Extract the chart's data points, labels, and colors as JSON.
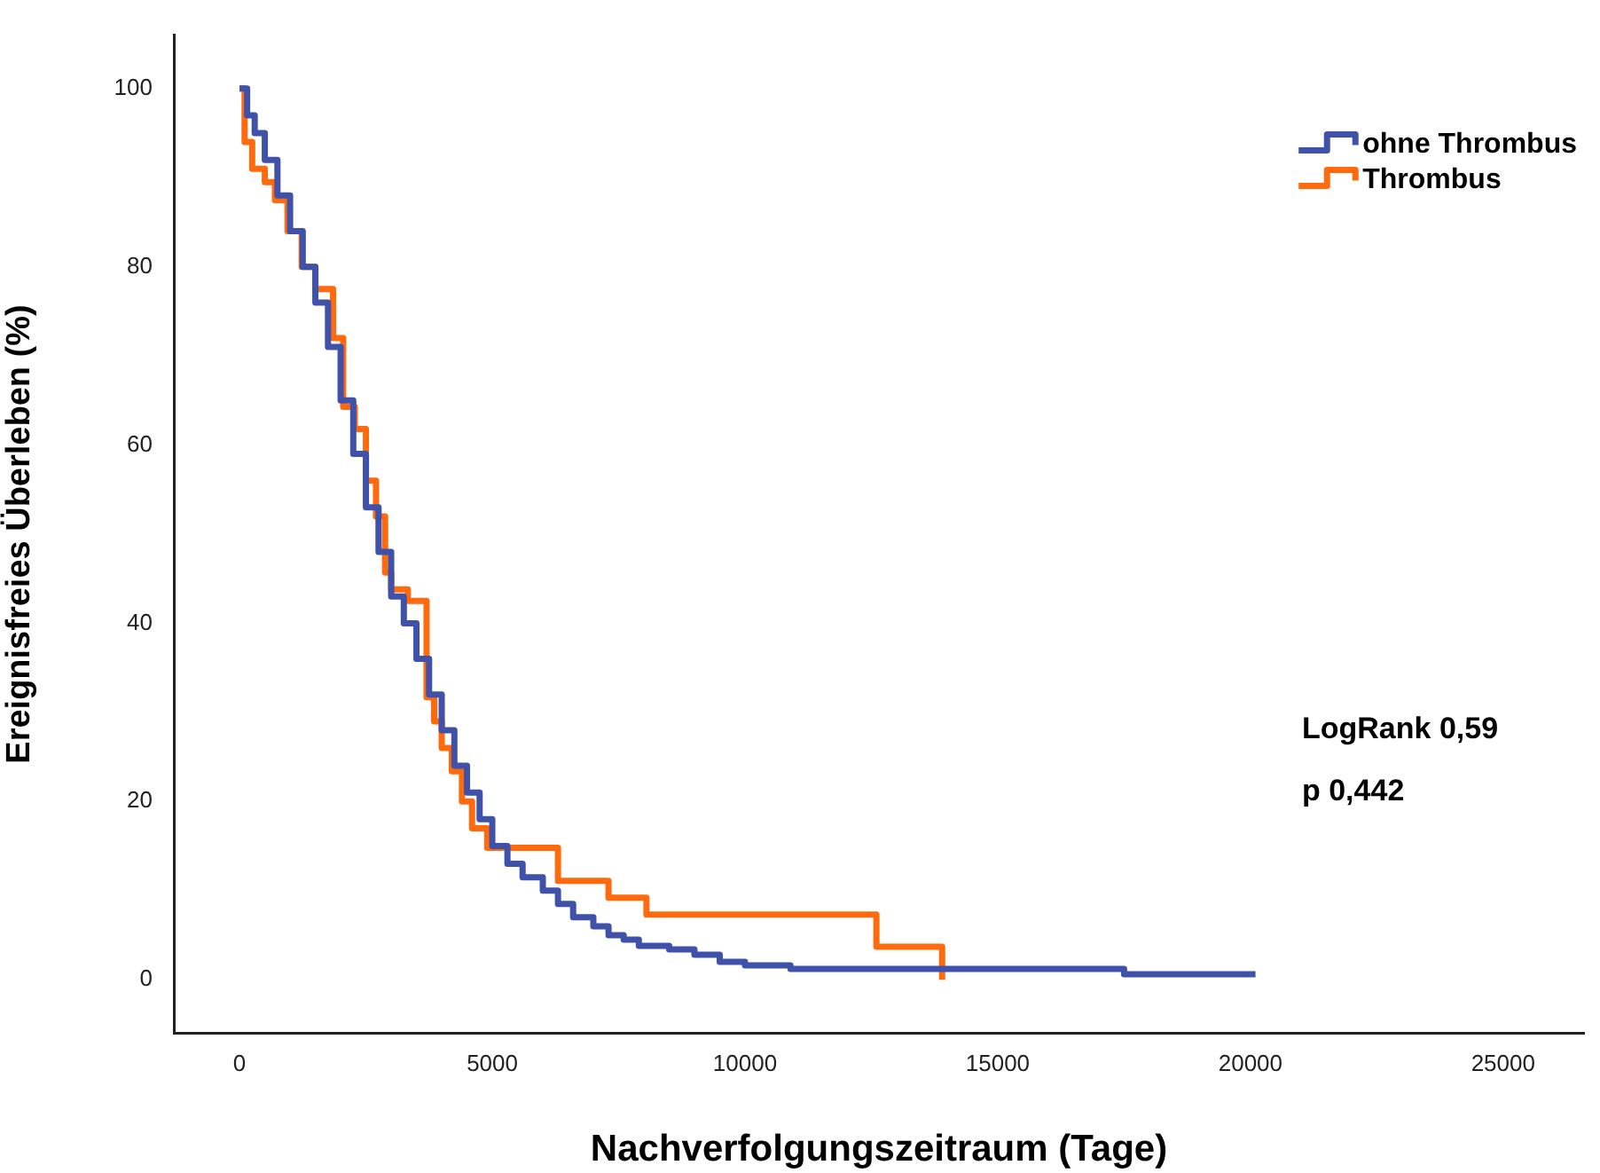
{
  "chart_data": {
    "type": "step",
    "xlabel": "Nachverfolgungszeitraum (Tage)",
    "ylabel": "Ereignisfreies Überleben (%)",
    "xlim": [
      -1300,
      26600
    ],
    "xticks": [
      0,
      5000,
      10000,
      15000,
      20000,
      25000
    ],
    "ylim": [
      -6,
      106
    ],
    "yticks": [
      0,
      20,
      40,
      60,
      80,
      100
    ],
    "grid": false,
    "legend": "top right",
    "marker": "none",
    "line_style": "solid",
    "annotations": [
      "LogRank 0,59",
      "p 0,442"
    ],
    "series": [
      {
        "name": "ohne Thrombus",
        "color": "#3f51a8",
        "x": [
          0,
          150,
          300,
          500,
          750,
          1000,
          1250,
          1500,
          1750,
          2000,
          2250,
          2500,
          2750,
          3000,
          3250,
          3500,
          3750,
          4000,
          4250,
          4500,
          4750,
          5000,
          5300,
          5600,
          6000,
          6300,
          6600,
          7000,
          7300,
          7600,
          7900,
          8500,
          9000,
          9500,
          10000,
          10900,
          17500,
          20100
        ],
        "values": [
          100,
          97,
          95,
          92,
          88,
          84,
          80,
          76,
          71,
          65,
          59,
          53,
          48,
          43,
          40,
          36,
          32,
          28,
          24,
          21,
          18,
          15,
          13,
          11.5,
          10,
          8.5,
          7,
          6,
          5,
          4.5,
          3.8,
          3.4,
          2.8,
          2,
          1.6,
          1.2,
          0.6,
          0.6
        ]
      },
      {
        "name": "Thrombus",
        "color": "#ff6a0e",
        "x": [
          0,
          100,
          250,
          500,
          700,
          950,
          1230,
          1500,
          1850,
          2050,
          2280,
          2500,
          2700,
          2880,
          3000,
          3330,
          3700,
          3850,
          4000,
          4200,
          4400,
          4600,
          4900,
          6300,
          7300,
          8050,
          12600,
          13900
        ],
        "values": [
          100,
          94,
          91,
          89.5,
          87.5,
          84,
          80,
          77.5,
          72,
          64.3,
          61.8,
          56,
          52,
          45.7,
          43.8,
          42.5,
          31.7,
          29,
          26,
          23.4,
          20,
          17,
          14.8,
          11.1,
          9.2,
          7.3,
          3.7,
          0
        ]
      }
    ]
  }
}
